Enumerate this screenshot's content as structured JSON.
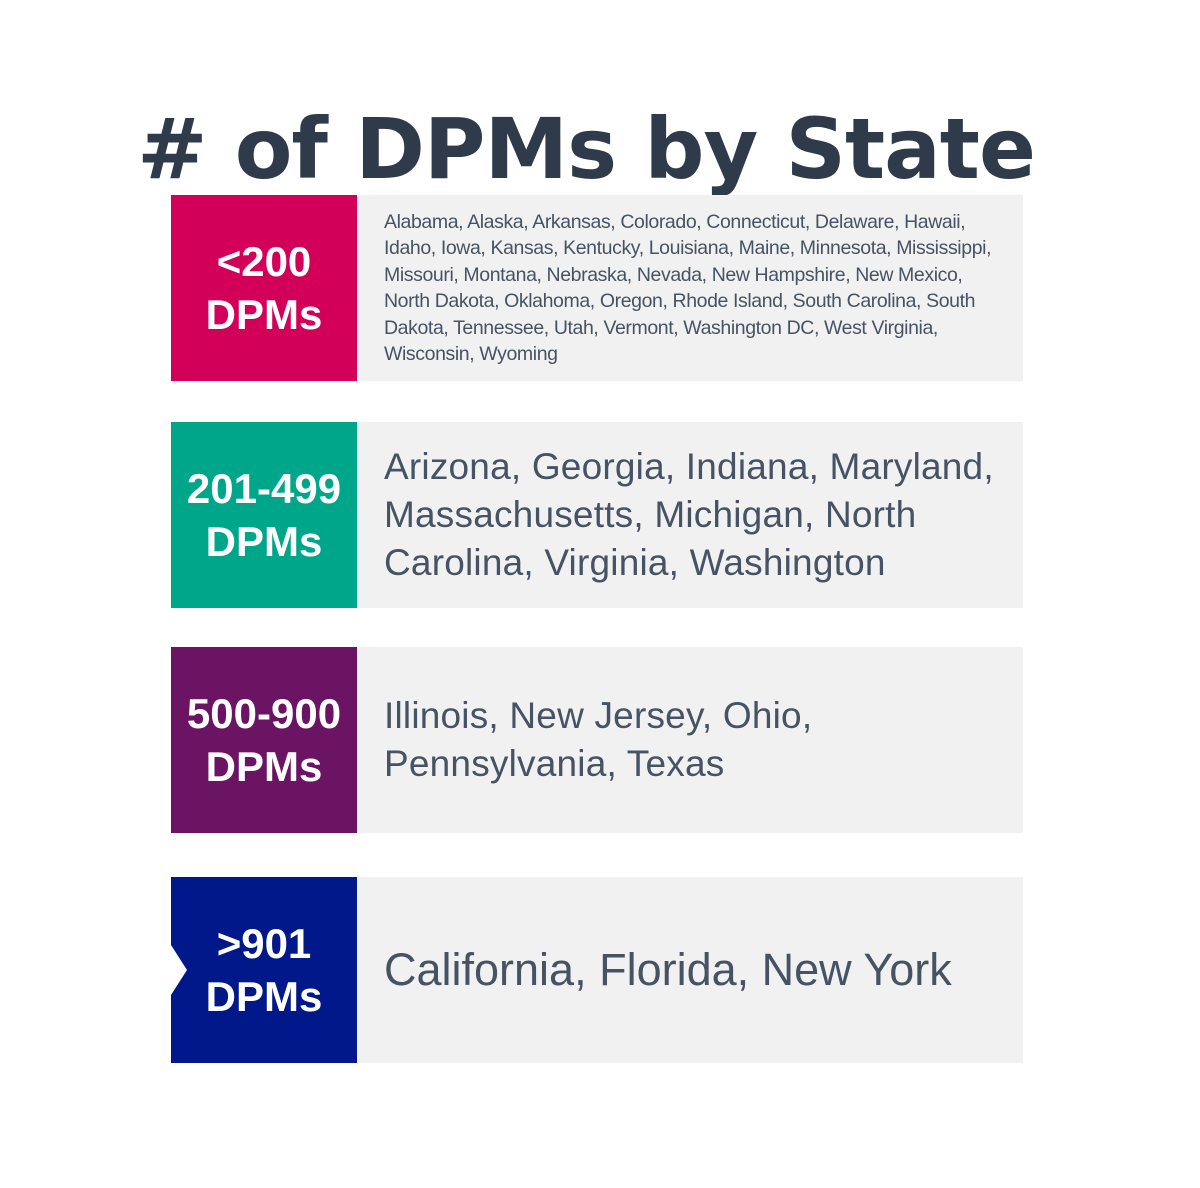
{
  "title": "# of DPMs by State",
  "tiers": [
    {
      "range": "<200",
      "unit": "DPMs",
      "color": "#d3005a",
      "states": "Alabama, Alaska, Arkansas, Colorado, Connecticut, Delaware, Hawaii,  Idaho, Iowa, Kansas, Kentucky, Louisiana, Maine, Minnesota, Mississippi, Missouri, Montana, Nebraska, Nevada, New Hampshire, New Mexico, North Dakota, Oklahoma, Oregon, Rhode Island, South Carolina, South Dakota, Tennessee, Utah, Vermont, Washington DC, West Virginia, Wisconsin, Wyoming"
    },
    {
      "range": "201-499",
      "unit": "DPMs",
      "color": "#00a68a",
      "states": "Arizona, Georgia, Indiana, Maryland, Massachusetts, Michigan, North Carolina, Virginia, Washington"
    },
    {
      "range": "500-900",
      "unit": "DPMs",
      "color": "#6c1464",
      "states": "Illinois, New Jersey, Ohio, Pennsylvania, Texas"
    },
    {
      "range": ">901",
      "unit": "DPMs",
      "color": "#00188a",
      "states": "California, Florida, New York"
    }
  ]
}
